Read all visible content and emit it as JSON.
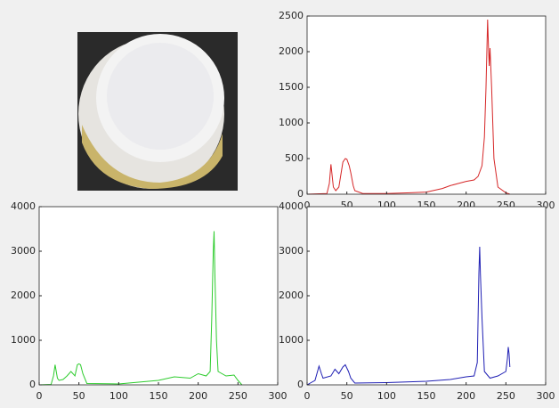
{
  "chart_data": [
    {
      "type": "line",
      "color": "#d62728",
      "x": [
        0,
        25,
        28,
        30,
        33,
        36,
        40,
        45,
        48,
        50,
        53,
        55,
        58,
        60,
        70,
        100,
        130,
        150,
        170,
        180,
        190,
        200,
        210,
        215,
        220,
        223,
        225,
        227,
        228,
        229,
        230,
        232,
        235,
        240,
        250,
        255
      ],
      "values": [
        0,
        10,
        150,
        420,
        100,
        50,
        100,
        450,
        500,
        490,
        400,
        300,
        120,
        50,
        10,
        10,
        20,
        30,
        80,
        120,
        150,
        180,
        200,
        250,
        400,
        800,
        1500,
        2450,
        2100,
        1800,
        2050,
        1500,
        500,
        100,
        20,
        0
      ],
      "xlim": [
        0,
        300
      ],
      "xticks": [
        0,
        50,
        100,
        150,
        200,
        250,
        300
      ],
      "ylim": [
        0,
        2500
      ],
      "yticks": [
        0,
        500,
        1000,
        1500,
        2000,
        2500
      ]
    },
    {
      "type": "line",
      "color": "#2ecc2e",
      "x": [
        0,
        15,
        18,
        20,
        23,
        25,
        30,
        35,
        40,
        45,
        48,
        50,
        52,
        55,
        60,
        100,
        150,
        170,
        190,
        200,
        210,
        215,
        217,
        219,
        220,
        221,
        223,
        225,
        235,
        245,
        250,
        255
      ],
      "values": [
        0,
        10,
        200,
        450,
        150,
        100,
        120,
        200,
        300,
        200,
        450,
        470,
        450,
        250,
        30,
        20,
        100,
        180,
        150,
        250,
        200,
        300,
        1500,
        3000,
        3450,
        2500,
        1000,
        300,
        200,
        220,
        100,
        0
      ],
      "xlim": [
        0,
        300
      ],
      "xticks": [
        0,
        50,
        100,
        150,
        200,
        250,
        300
      ],
      "ylim": [
        0,
        4000
      ],
      "yticks": [
        0,
        1000,
        2000,
        3000,
        4000
      ]
    },
    {
      "type": "line",
      "color": "#1f1fb4",
      "x": [
        0,
        10,
        15,
        18,
        20,
        30,
        35,
        40,
        45,
        48,
        52,
        55,
        60,
        100,
        150,
        180,
        200,
        210,
        214,
        216,
        217,
        218,
        220,
        223,
        230,
        240,
        250,
        252,
        253,
        254,
        255
      ],
      "values": [
        0,
        100,
        420,
        250,
        150,
        200,
        350,
        250,
        400,
        450,
        300,
        150,
        40,
        50,
        80,
        120,
        180,
        200,
        500,
        2500,
        3100,
        2500,
        1500,
        300,
        150,
        200,
        300,
        600,
        850,
        700,
        400
      ],
      "xlim": [
        0,
        300
      ],
      "xticks": [
        0,
        50,
        100,
        150,
        200,
        250,
        300
      ],
      "ylim": [
        0,
        4000
      ],
      "yticks": [
        0,
        1000,
        2000,
        3000,
        4000
      ]
    }
  ]
}
